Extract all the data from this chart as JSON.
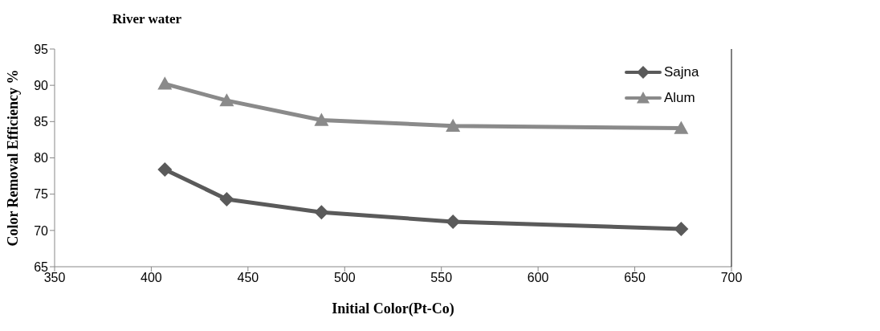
{
  "chart_data": {
    "type": "line",
    "title": "River water",
    "xlabel": "Initial Color(Pt-Co)",
    "ylabel": "Color Removal Efficiency %",
    "x": [
      407,
      439,
      488,
      556,
      674
    ],
    "series": [
      {
        "name": "Sajna",
        "color": "#5a5a5a",
        "marker": "diamond",
        "values": [
          78.4,
          74.3,
          72.5,
          71.2,
          70.2
        ]
      },
      {
        "name": "Alum",
        "color": "#8a8a8a",
        "marker": "triangle",
        "values": [
          90.2,
          87.9,
          85.2,
          84.4,
          84.1
        ]
      }
    ],
    "xlim": [
      350,
      700
    ],
    "xticks": [
      350,
      400,
      450,
      500,
      550,
      600,
      650,
      700
    ],
    "ylim": [
      65,
      95
    ],
    "yticks": [
      65,
      70,
      75,
      80,
      85,
      90,
      95
    ],
    "grid": false,
    "legend": "top right",
    "line_style": "solid"
  }
}
